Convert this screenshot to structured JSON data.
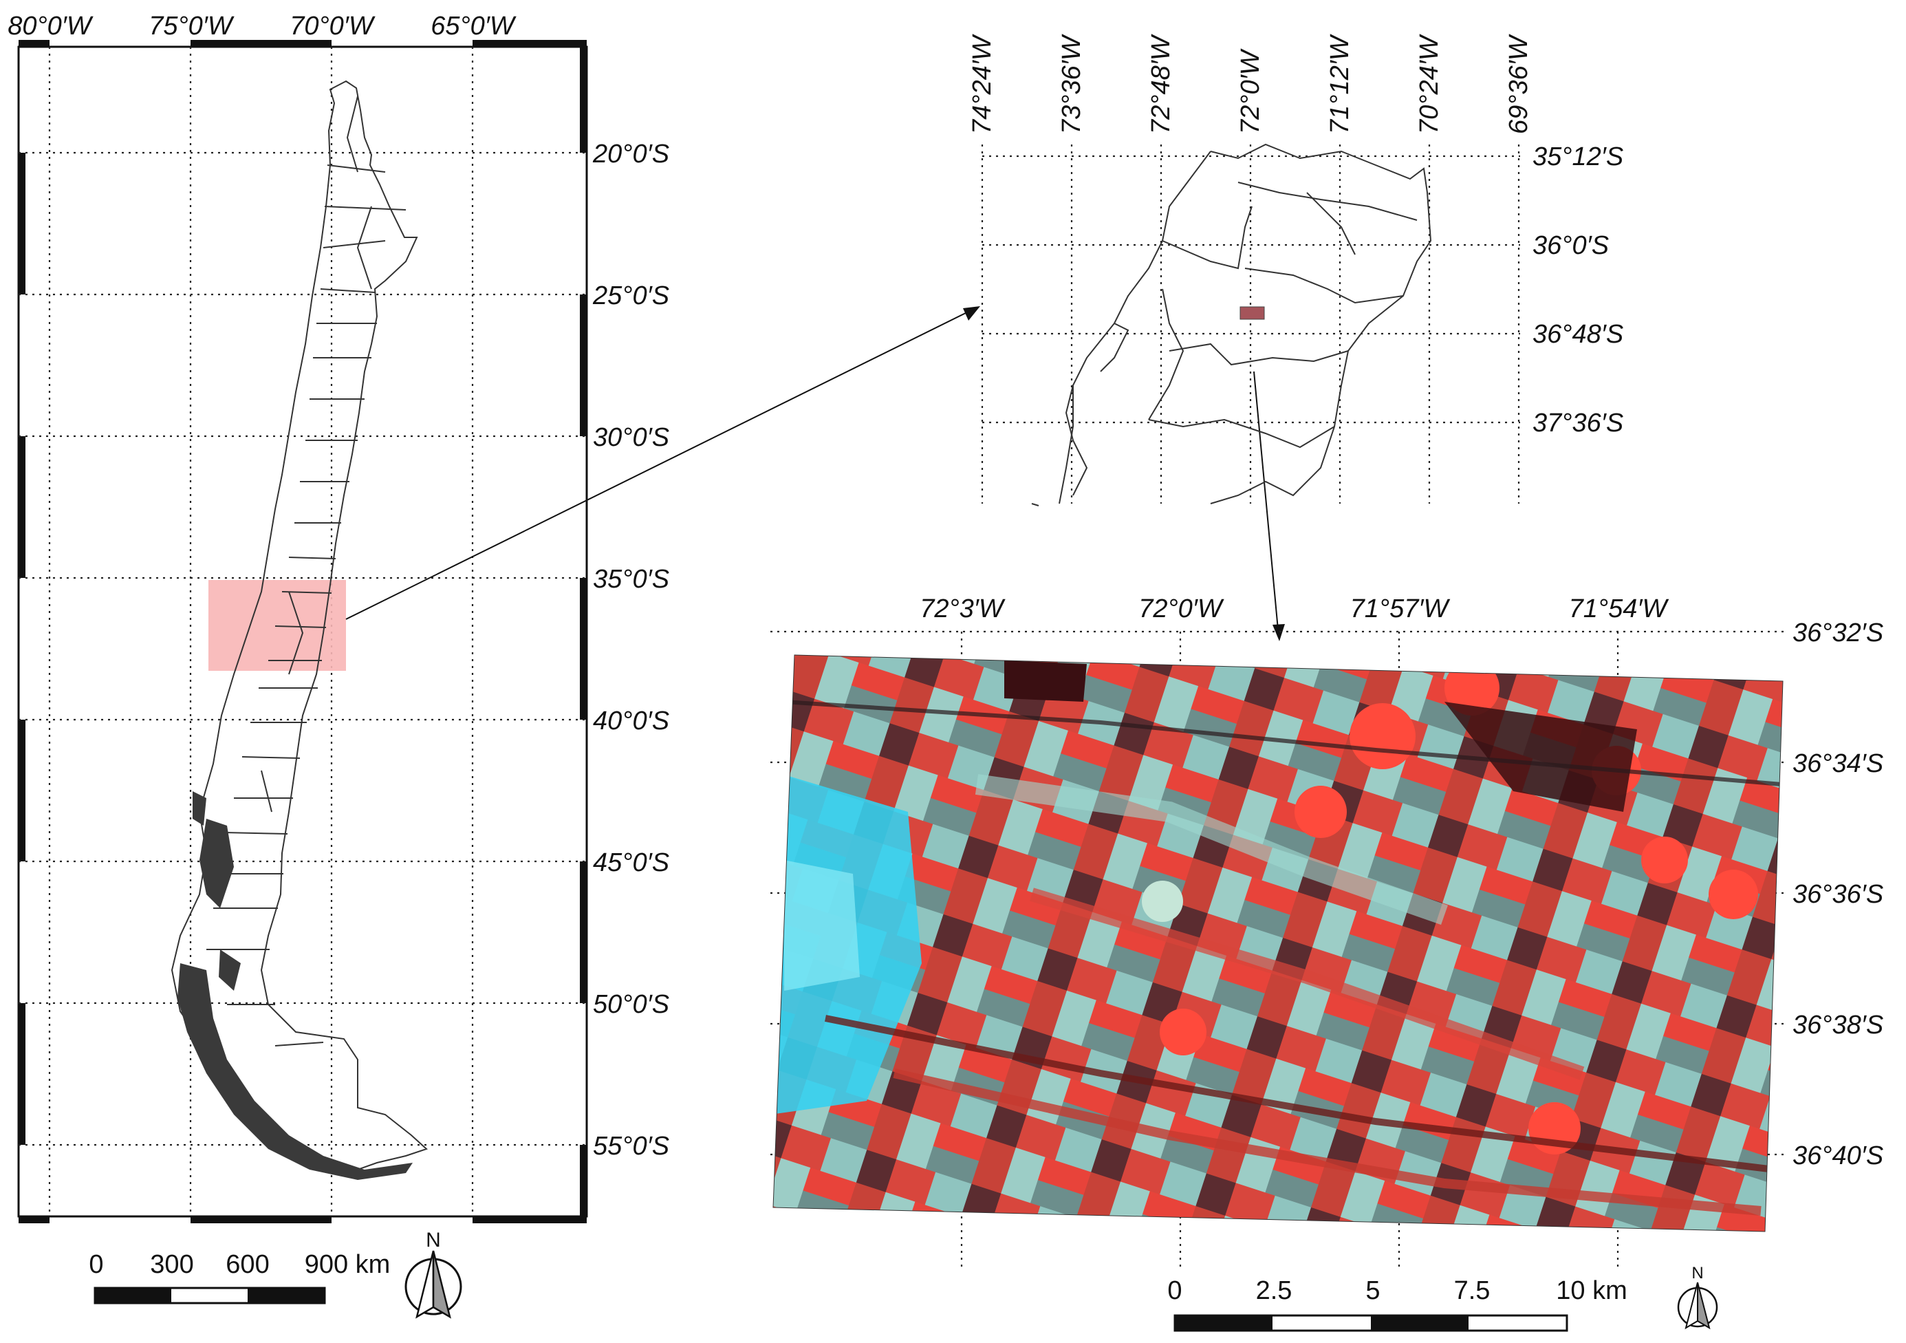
{
  "overview_map": {
    "lon_labels": [
      "80°0′W",
      "75°0′W",
      "70°0′W",
      "65°0′W"
    ],
    "lat_labels": [
      "20°0′S",
      "25°0′S",
      "30°0′S",
      "35°0′S",
      "40°0′S",
      "45°0′S",
      "50°0′S",
      "55°0′S"
    ],
    "highlight_color": "#f8b6b6",
    "scalebar": {
      "labels": [
        "0",
        "300",
        "600",
        "900 km"
      ]
    },
    "north": "N"
  },
  "region_map": {
    "lon_labels": [
      "74°24′W",
      "73°36′W",
      "72°48′W",
      "72°0′W",
      "71°12′W",
      "70°24′W",
      "69°36′W"
    ],
    "lat_labels": [
      "35°12′S",
      "36°0′S",
      "36°48′S",
      "37°36′S"
    ]
  },
  "study_area_map": {
    "lon_labels": [
      "72°3′W",
      "72°0′W",
      "71°57′W",
      "71°54′W"
    ],
    "lat_labels": [
      "36°32′S",
      "36°34′S",
      "36°36′S",
      "36°38′S",
      "36°40′S"
    ],
    "image_colors": {
      "crop": "#e8433a",
      "soil": "#8fc4bf",
      "water": "#36d0ee",
      "dark": "#4a1f24"
    },
    "scalebar": {
      "labels": [
        "0",
        "2.5",
        "5",
        "7.5",
        "10 km"
      ]
    },
    "north": "N"
  }
}
